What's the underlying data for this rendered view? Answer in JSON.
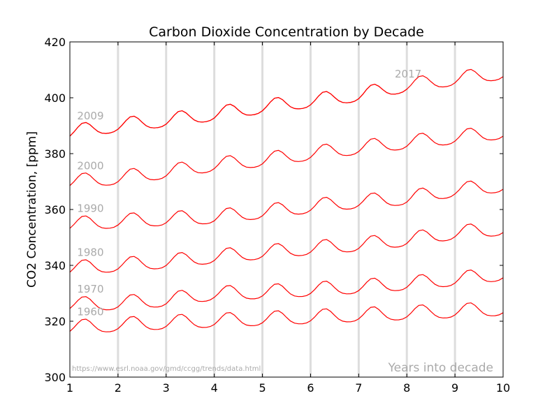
{
  "chart_data": {
    "type": "line",
    "title": "Carbon Dioxide Concentration by Decade",
    "xlabel": "",
    "ylabel": "CO2 Concentration, [ppm]",
    "xlim": [
      1,
      10
    ],
    "ylim": [
      300,
      420
    ],
    "xticks": [
      "1",
      "2",
      "3",
      "4",
      "5",
      "6",
      "7",
      "8",
      "9",
      "10"
    ],
    "yticks": [
      "300",
      "320",
      "340",
      "360",
      "380",
      "400",
      "420"
    ],
    "grid": "vertical lines at integer years",
    "series_color": "#ff0000",
    "grid_color": "#dddddd",
    "annotation_color": "#aaaaaa",
    "seasonal_amplitude_ppm": 3,
    "annotations": {
      "source": "https://www.esrl.noaa.gov/gmd/ccgg/trends/data.html",
      "xaxis_note": "Years into decade"
    },
    "series": [
      {
        "name": "1960",
        "x_end": 10,
        "x": [
          1,
          2,
          3,
          4,
          5,
          6,
          7,
          8,
          9,
          10
        ],
        "trend": [
          317.5,
          318.5,
          319.3,
          320.0,
          320.6,
          321.3,
          322.0,
          322.7,
          323.4,
          324.2
        ]
      },
      {
        "name": "1970",
        "x_end": 10,
        "x": [
          1,
          2,
          3,
          4,
          5,
          6,
          7,
          8,
          9,
          10
        ],
        "trend": [
          325.7,
          326.3,
          327.4,
          329.7,
          330.2,
          331.1,
          332.1,
          333.3,
          334.8,
          336.7
        ]
      },
      {
        "name": "1980",
        "x_end": 10,
        "x": [
          1,
          2,
          3,
          4,
          5,
          6,
          7,
          8,
          9,
          10
        ],
        "trend": [
          338.7,
          339.9,
          341.1,
          342.9,
          344.4,
          345.9,
          347.2,
          349.0,
          351.4,
          352.9
        ]
      },
      {
        "name": "1990",
        "x_end": 10,
        "x": [
          1,
          2,
          3,
          4,
          5,
          6,
          7,
          8,
          9,
          10
        ],
        "trend": [
          354.4,
          355.6,
          356.4,
          357.1,
          358.9,
          360.9,
          362.6,
          363.8,
          366.7,
          368.4
        ]
      },
      {
        "name": "2000",
        "x_end": 10,
        "x": [
          1,
          2,
          3,
          4,
          5,
          6,
          7,
          8,
          9,
          10
        ],
        "trend": [
          369.7,
          371.1,
          373.2,
          375.8,
          377.5,
          379.8,
          381.9,
          383.8,
          385.6,
          387.4
        ]
      },
      {
        "name": "2009",
        "x_end": 10,
        "x": [
          1,
          2,
          3,
          4,
          5,
          6,
          7,
          8,
          9,
          10
        ],
        "trend": [
          387.4,
          389.9,
          391.7,
          393.9,
          396.5,
          398.6,
          400.8,
          404.2,
          406.5,
          408.7
        ]
      },
      {
        "name": "2017",
        "x_end": 8,
        "x": [
          1,
          2,
          3,
          4,
          5,
          6,
          7,
          8,
          9,
          10
        ],
        "trend": [
          387.4,
          389.9,
          391.7,
          393.9,
          396.5,
          398.6,
          400.8,
          404.2,
          406.5,
          408.7
        ]
      }
    ]
  }
}
